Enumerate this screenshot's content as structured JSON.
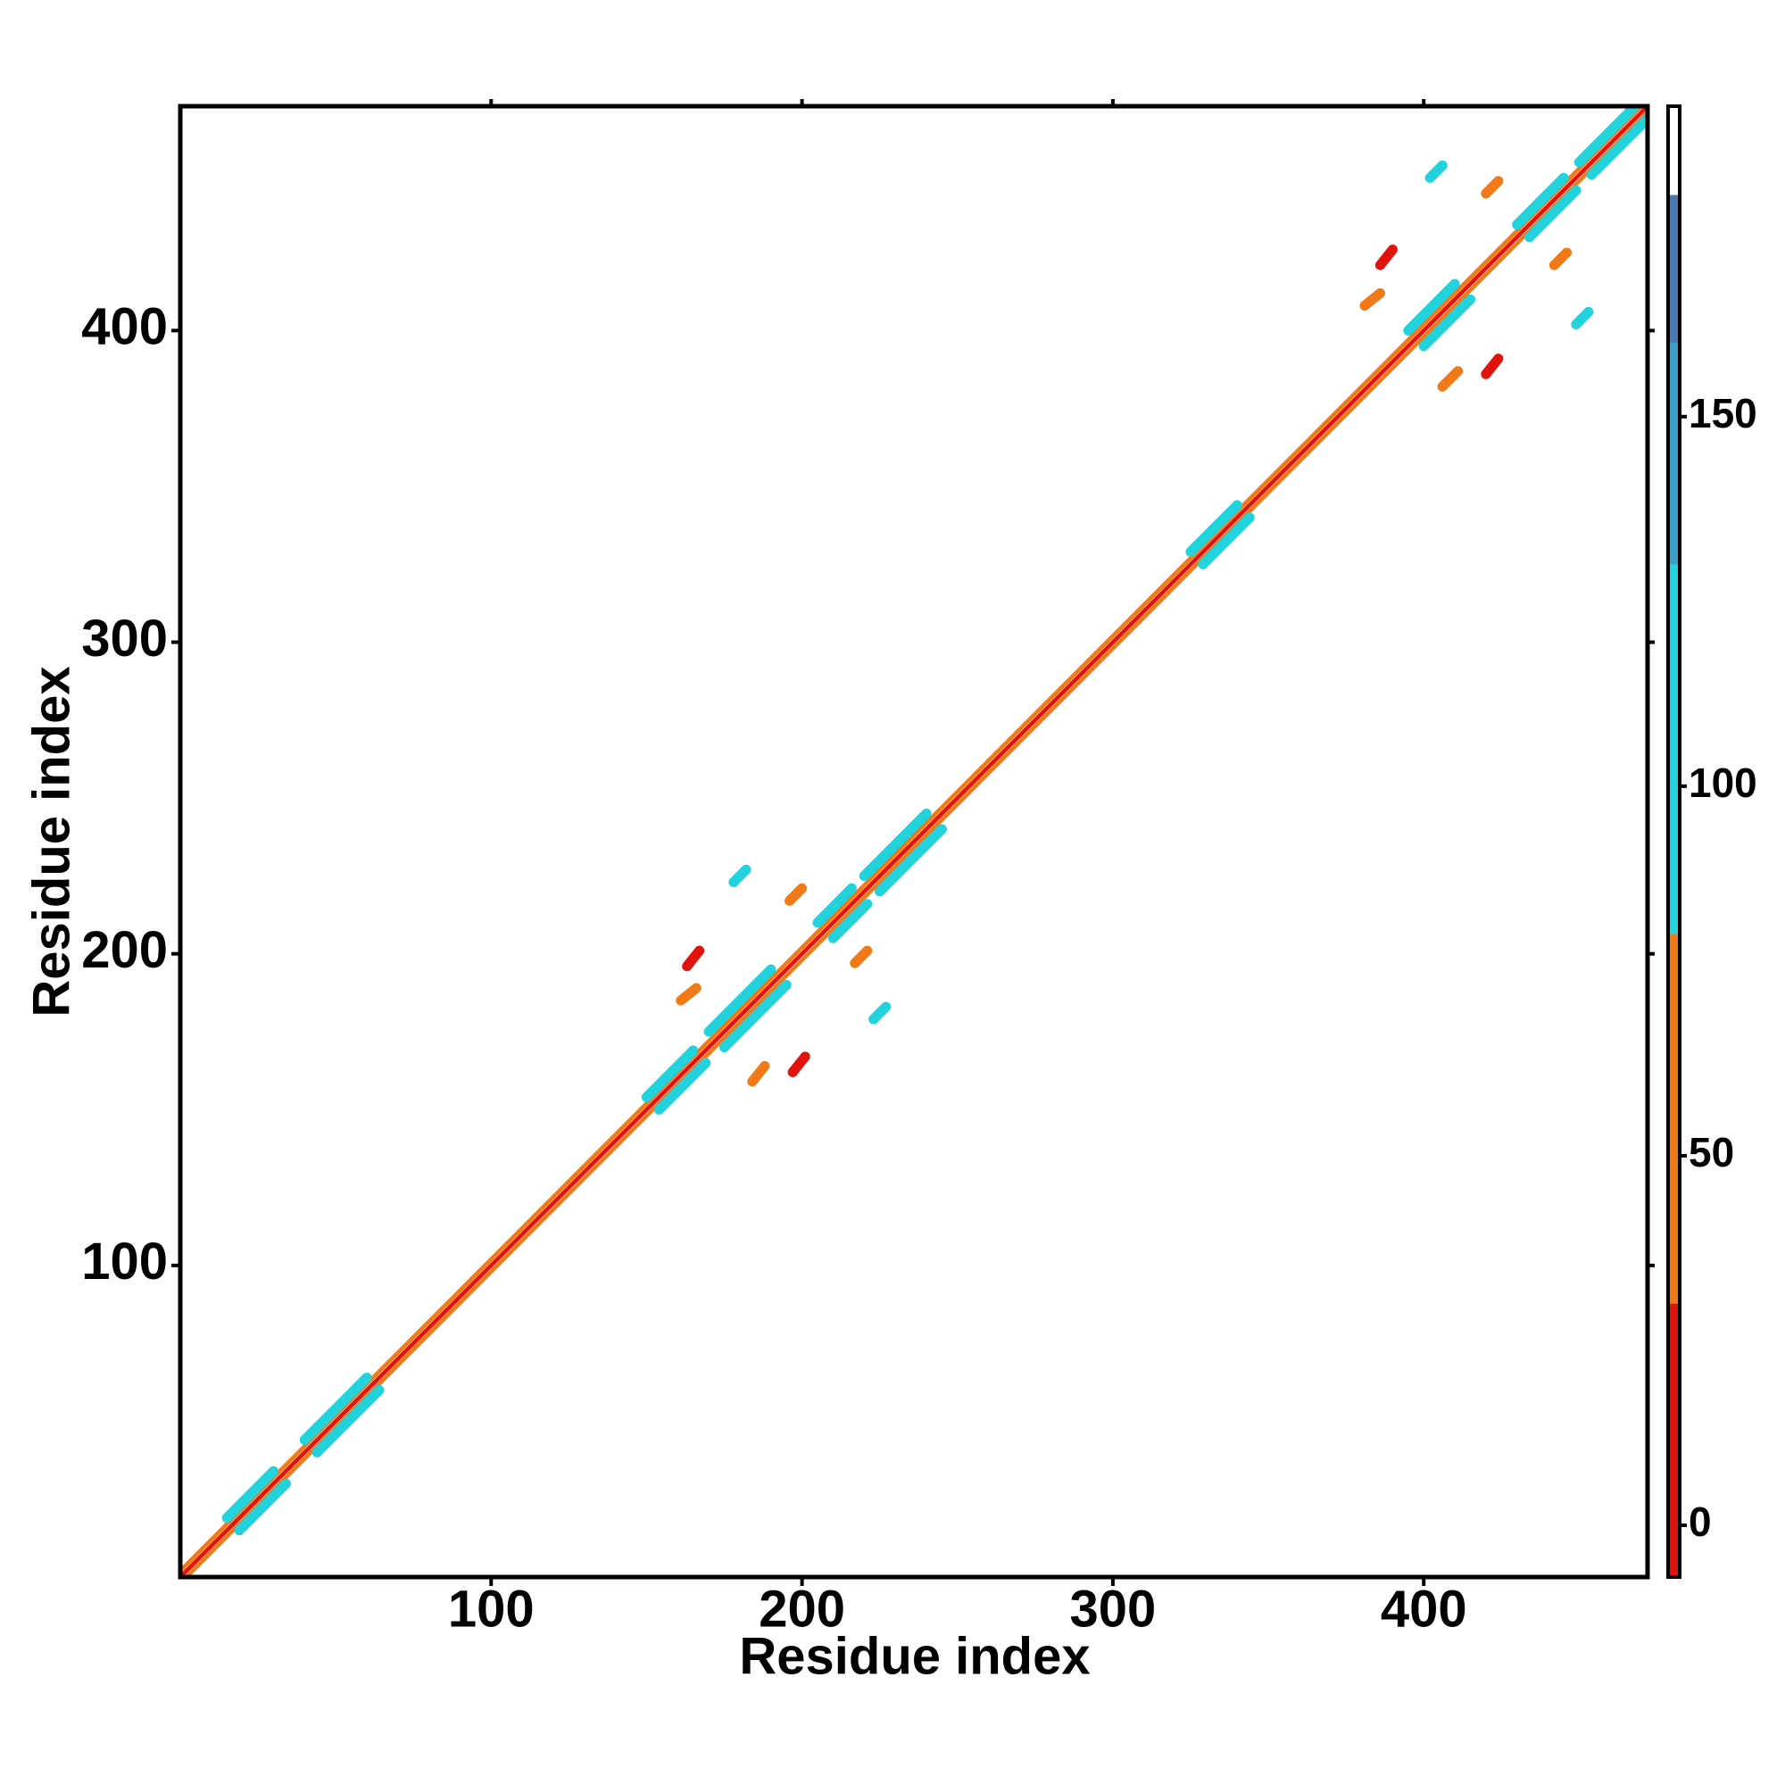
{
  "chart_data": {
    "type": "heatmap",
    "x_label": "Residue index",
    "y_label": "Residue index",
    "xlim": [
      0,
      472
    ],
    "ylim": [
      0,
      472
    ],
    "xticks": [
      100,
      200,
      300,
      400
    ],
    "yticks": [
      100,
      200,
      300,
      400
    ],
    "clim": [
      -7,
      192
    ],
    "cticks": [
      0,
      50,
      100,
      150
    ],
    "colorbar": [
      {
        "from": -7,
        "to": 30,
        "color": "#e0140c"
      },
      {
        "from": 30,
        "to": 80,
        "color": "#f07a18"
      },
      {
        "from": 80,
        "to": 130,
        "color": "#22d2dc"
      },
      {
        "from": 130,
        "to": 160,
        "color": "#3aa2c8"
      },
      {
        "from": 160,
        "to": 180,
        "color": "#4a78b0"
      },
      {
        "from": 180,
        "to": 192,
        "color": "#ffffff"
      }
    ],
    "contacts": [
      {
        "i": [
          0,
          472
        ],
        "j": [
          2,
          474
        ],
        "value": 55
      },
      {
        "i": [
          2,
          474
        ],
        "j": [
          0,
          472
        ],
        "value": 55
      },
      {
        "i": [
          15,
          30
        ],
        "j": [
          19,
          34
        ],
        "value": 100
      },
      {
        "i": [
          19,
          34
        ],
        "j": [
          15,
          30
        ],
        "value": 100
      },
      {
        "i": [
          40,
          60
        ],
        "j": [
          44,
          64
        ],
        "value": 100
      },
      {
        "i": [
          44,
          64
        ],
        "j": [
          40,
          60
        ],
        "value": 100
      },
      {
        "i": [
          150,
          165
        ],
        "j": [
          154,
          169
        ],
        "value": 100
      },
      {
        "i": [
          154,
          169
        ],
        "j": [
          150,
          165
        ],
        "value": 100
      },
      {
        "i": [
          170,
          190
        ],
        "j": [
          175,
          195
        ],
        "value": 100
      },
      {
        "i": [
          175,
          195
        ],
        "j": [
          170,
          190
        ],
        "value": 100
      },
      {
        "i": [
          205,
          216
        ],
        "j": [
          210,
          221
        ],
        "value": 100
      },
      {
        "i": [
          210,
          221
        ],
        "j": [
          205,
          216
        ],
        "value": 100
      },
      {
        "i": [
          220,
          240
        ],
        "j": [
          225,
          245
        ],
        "value": 100
      },
      {
        "i": [
          225,
          245
        ],
        "j": [
          220,
          240
        ],
        "value": 100
      },
      {
        "i": [
          325,
          340
        ],
        "j": [
          329,
          344
        ],
        "value": 100
      },
      {
        "i": [
          329,
          344
        ],
        "j": [
          325,
          340
        ],
        "value": 100
      },
      {
        "i": [
          395,
          410
        ],
        "j": [
          400,
          415
        ],
        "value": 100
      },
      {
        "i": [
          400,
          415
        ],
        "j": [
          395,
          410
        ],
        "value": 100
      },
      {
        "i": [
          430,
          445
        ],
        "j": [
          434,
          449
        ],
        "value": 100
      },
      {
        "i": [
          434,
          449
        ],
        "j": [
          430,
          445
        ],
        "value": 100
      },
      {
        "i": [
          450,
          468
        ],
        "j": [
          454,
          472
        ],
        "value": 100
      },
      {
        "i": [
          454,
          472
        ],
        "j": [
          450,
          468
        ],
        "value": 100
      },
      {
        "i": [
          0,
          472
        ],
        "j": [
          0,
          472
        ],
        "value": -5
      },
      {
        "i": [
          163,
          167
        ],
        "j": [
          196,
          201
        ],
        "value": 10
      },
      {
        "i": [
          161,
          166
        ],
        "j": [
          185,
          189
        ],
        "value": 55
      },
      {
        "i": [
          184,
          188
        ],
        "j": [
          159,
          164
        ],
        "value": 55
      },
      {
        "i": [
          197,
          201
        ],
        "j": [
          162,
          167
        ],
        "value": 10
      },
      {
        "i": [
          196,
          200
        ],
        "j": [
          217,
          221
        ],
        "value": 55
      },
      {
        "i": [
          217,
          221
        ],
        "j": [
          197,
          201
        ],
        "value": 55
      },
      {
        "i": [
          178,
          182
        ],
        "j": [
          223,
          227
        ],
        "value": 100
      },
      {
        "i": [
          223,
          227
        ],
        "j": [
          179,
          183
        ],
        "value": 100
      },
      {
        "i": [
          386,
          390
        ],
        "j": [
          421,
          426
        ],
        "value": 10
      },
      {
        "i": [
          381,
          386
        ],
        "j": [
          408,
          412
        ],
        "value": 55
      },
      {
        "i": [
          406,
          411
        ],
        "j": [
          382,
          387
        ],
        "value": 55
      },
      {
        "i": [
          420,
          424
        ],
        "j": [
          386,
          391
        ],
        "value": 10
      },
      {
        "i": [
          420,
          424
        ],
        "j": [
          444,
          448
        ],
        "value": 55
      },
      {
        "i": [
          442,
          446
        ],
        "j": [
          421,
          425
        ],
        "value": 55
      },
      {
        "i": [
          402,
          406
        ],
        "j": [
          449,
          453
        ],
        "value": 100
      },
      {
        "i": [
          449,
          453
        ],
        "j": [
          402,
          406
        ],
        "value": 100
      }
    ]
  }
}
